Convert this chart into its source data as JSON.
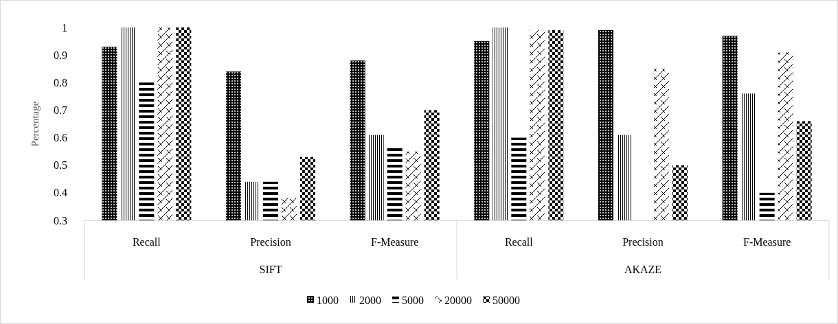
{
  "chart_data": {
    "type": "bar",
    "ylabel": "Percentage",
    "categories": [
      "Recall",
      "Precision",
      "F-Measure",
      "Recall",
      "Precision",
      "F-Measure"
    ],
    "annotations": [
      "SIFT",
      "AKAZE"
    ],
    "ylim": [
      0.3,
      1
    ],
    "yticks": [
      0.3,
      0.4,
      0.5,
      0.6,
      0.7,
      0.8,
      0.9,
      1
    ],
    "grid": false,
    "legend": "bottom",
    "series": [
      {
        "name": "1000",
        "color": "#000000",
        "values": [
          0.93,
          0.84,
          0.88,
          0.95,
          0.99,
          0.97
        ]
      },
      {
        "name": "2000",
        "color": "#000000",
        "values": [
          1.0,
          0.44,
          0.61,
          1.0,
          0.61,
          0.76
        ]
      },
      {
        "name": "5000",
        "color": "#000000",
        "values": [
          0.8,
          0.44,
          0.57,
          0.6,
          null,
          0.4
        ]
      },
      {
        "name": "20000",
        "color": "#000000",
        "values": [
          1.0,
          0.38,
          0.55,
          0.99,
          0.85,
          0.91
        ]
      },
      {
        "name": "50000",
        "color": "#000000",
        "values": [
          1.0,
          0.53,
          0.7,
          0.99,
          0.5,
          0.66
        ]
      }
    ]
  }
}
